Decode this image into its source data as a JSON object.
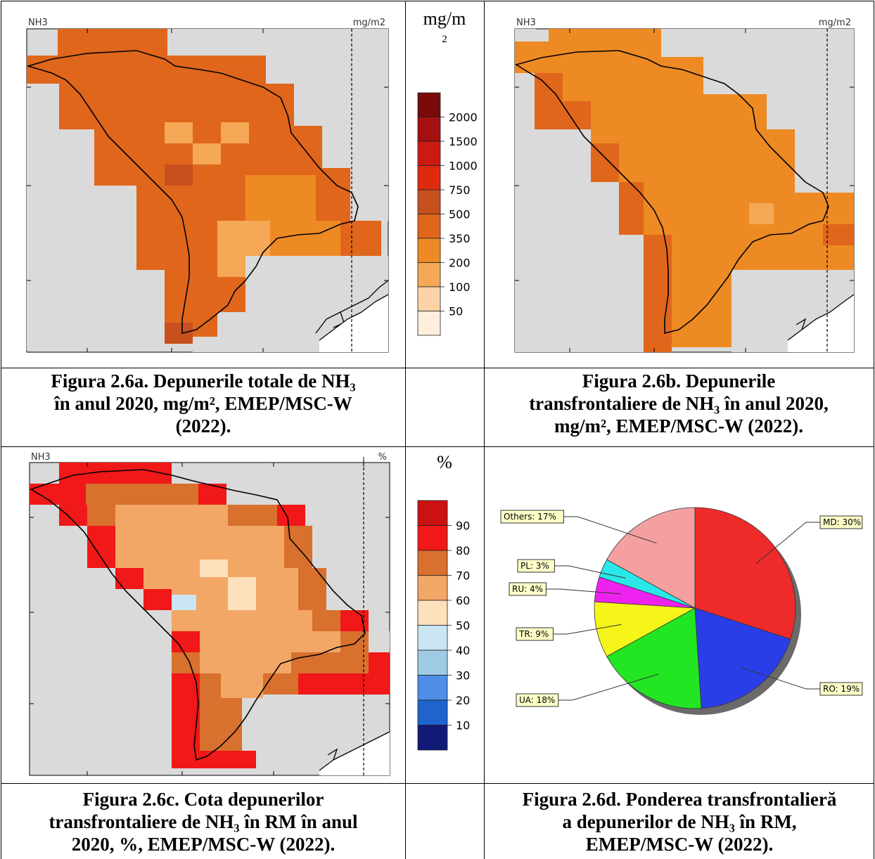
{
  "panel_a": {
    "map_label_left": "NH3",
    "map_label_right": "mg/m2",
    "caption_line1": "Figura 2.6a. Depunerile totale de NH₃",
    "caption_line2": "în anul 2020, mg/m², EMEP/MSC-W",
    "caption_line3": "(2022)."
  },
  "panel_b": {
    "map_label_left": "NH3",
    "map_label_right": "mg/m2",
    "caption_line1": "Figura 2.6b. Depunerile",
    "caption_line2": "transfrontaliere de NH₃ în anul 2020,",
    "caption_line3": "mg/m², EMEP/MSC-W (2022)."
  },
  "panel_c": {
    "map_label_left": "NH3",
    "map_label_right": "%",
    "caption_line1": "Figura 2.6c. Cota depunerilor",
    "caption_line2": "transfrontaliere de NH₃ în RM în anul",
    "caption_line3": "2020, %, EMEP/MSC-W (2022)."
  },
  "panel_d": {
    "caption_line1": "Figura 2.6d. Ponderea transfrontalieră",
    "caption_line2": "a depunerilor de NH₃ în RM,",
    "caption_line3": "EMEP/MSC-W (2022)."
  },
  "legend_top": {
    "unit_line1": "mg/m",
    "unit_line2": "2",
    "labels": [
      "2000",
      "1500",
      "1000",
      "750",
      "500",
      "350",
      "200",
      "100",
      "50"
    ],
    "colors": [
      "#7a0a0a",
      "#a51010",
      "#cc1a12",
      "#e02a10",
      "#c8501e",
      "#e0661c",
      "#ed8a24",
      "#f5a855",
      "#fbd3a6",
      "#fdeedd"
    ]
  },
  "legend_bottom": {
    "unit": "%",
    "labels": [
      "90",
      "80",
      "70",
      "60",
      "50",
      "40",
      "30",
      "20",
      "10"
    ],
    "colors": [
      "#cc1111",
      "#f01818",
      "#d8702e",
      "#f2a766",
      "#fde0bc",
      "#c9e6f2",
      "#9fcbe4",
      "#4f8ee6",
      "#1f63cf",
      "#121a78"
    ]
  },
  "chart_data": {
    "type": "pie",
    "title": "",
    "slices": [
      {
        "label": "MD: 30%",
        "value": 30,
        "color": "#ee2a2a"
      },
      {
        "label": "RO: 19%",
        "value": 19,
        "color": "#2a3ee8"
      },
      {
        "label": "UA: 18%",
        "value": 18,
        "color": "#22e622"
      },
      {
        "label": "TR: 9%",
        "value": 9,
        "color": "#f5f51a"
      },
      {
        "label": "RU: 4%",
        "value": 4,
        "color": "#ee22ee"
      },
      {
        "label": "PL: 3%",
        "value": 3,
        "color": "#2ae8e8"
      },
      {
        "label": "Others: 17%",
        "value": 17,
        "color": "#f5a0a0"
      }
    ]
  }
}
